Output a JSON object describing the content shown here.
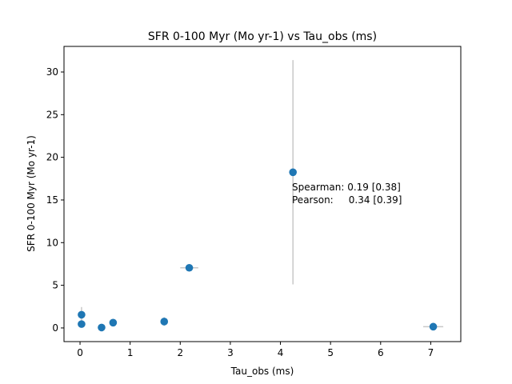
{
  "chart_data": {
    "type": "scatter",
    "title": "SFR 0-100 Myr (Mo yr-1) vs Tau_obs (ms)",
    "xlabel": "Tau_obs (ms)",
    "ylabel": "SFR 0-100 Myr (Mo yr-1)",
    "xlim": [
      -0.32,
      7.6
    ],
    "ylim": [
      -1.6,
      33.0
    ],
    "xticks": [
      0,
      1,
      2,
      3,
      4,
      5,
      6,
      7
    ],
    "yticks": [
      0,
      5,
      10,
      15,
      20,
      25,
      30
    ],
    "grid": false,
    "marker_color": "#1f77b4",
    "errorbar_color": "#c8c8c8",
    "points": [
      {
        "x": 0.03,
        "y": 1.55,
        "yerr": 0.9,
        "xerr": 0.0
      },
      {
        "x": 0.03,
        "y": 0.45,
        "yerr": 0.0,
        "xerr": 0.0
      },
      {
        "x": 0.43,
        "y": 0.05,
        "yerr": 0.0,
        "xerr": 0.0
      },
      {
        "x": 0.66,
        "y": 0.62,
        "yerr": 0.0,
        "xerr": 0.0
      },
      {
        "x": 1.68,
        "y": 0.75,
        "yerr": 0.5,
        "xerr": 0.0
      },
      {
        "x": 2.18,
        "y": 7.05,
        "yerr": 0.0,
        "xerr": 0.18
      },
      {
        "x": 4.25,
        "y": 18.25,
        "yerr": 13.15,
        "xerr": 0.0
      },
      {
        "x": 7.05,
        "y": 0.15,
        "yerr": 0.0,
        "xerr": 0.2
      }
    ],
    "annotations": [
      "Spearman: 0.19 [0.38]",
      "Pearson:     0.34 [0.39]"
    ]
  }
}
